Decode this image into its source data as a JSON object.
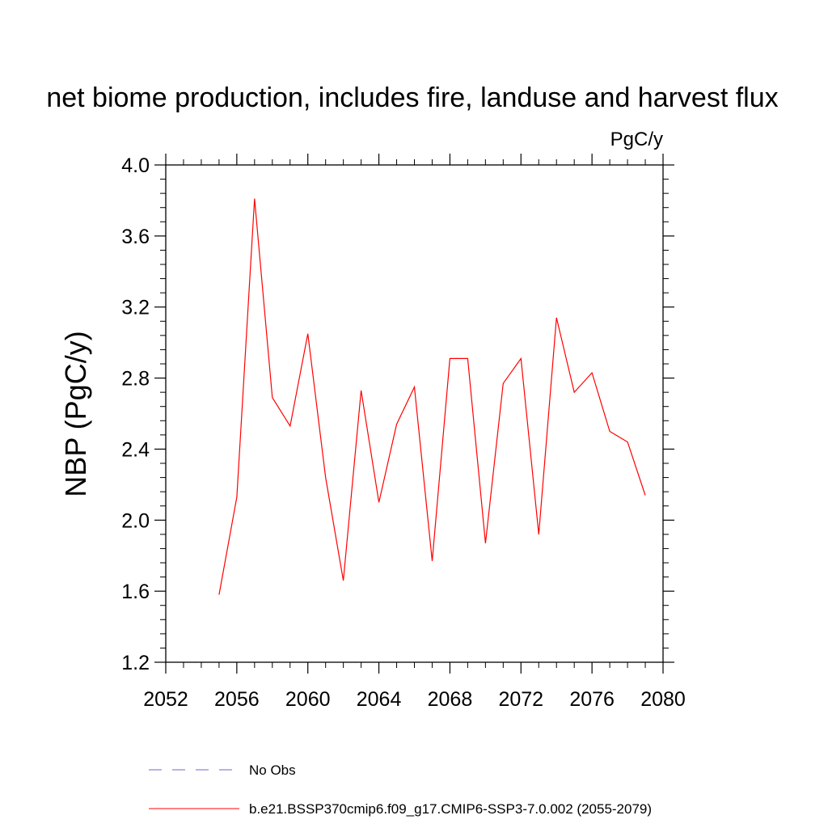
{
  "chart_data": {
    "type": "line",
    "title": "net biome production, includes fire, landuse and harvest flux",
    "units": "PgC/y",
    "xlabel": "",
    "ylabel": "NBP  (PgC/y)",
    "xlim": [
      2052,
      2080
    ],
    "ylim": [
      1.2,
      4.0
    ],
    "x_ticks": [
      2052,
      2056,
      2060,
      2064,
      2068,
      2072,
      2076,
      2080
    ],
    "x_tick_labels": [
      "2052",
      "2056",
      "2060",
      "2064",
      "2068",
      "2072",
      "2076",
      "2080"
    ],
    "y_ticks": [
      1.2,
      1.6,
      2.0,
      2.4,
      2.8,
      3.2,
      3.6,
      4.0
    ],
    "y_tick_labels": [
      "1.2",
      "1.6",
      "2.0",
      "2.4",
      "2.8",
      "3.2",
      "3.6",
      "4.0"
    ],
    "grid": false,
    "legend_position": "bottom",
    "series": [
      {
        "name": "b.e21.BSSP370cmip6.f09_g17.CMIP6-SSP3-7.0.002 (2055-2079)",
        "color": "#ff0000",
        "style": "solid",
        "x": [
          2055,
          2056,
          2057,
          2058,
          2059,
          2060,
          2061,
          2062,
          2063,
          2064,
          2065,
          2066,
          2067,
          2068,
          2069,
          2070,
          2071,
          2072,
          2073,
          2074,
          2075,
          2076,
          2077,
          2078,
          2079
        ],
        "y": [
          1.58,
          2.13,
          3.81,
          2.69,
          2.53,
          3.05,
          2.24,
          1.66,
          2.73,
          2.1,
          2.54,
          2.75,
          1.77,
          2.91,
          2.91,
          1.87,
          2.77,
          2.91,
          1.92,
          3.14,
          2.72,
          2.83,
          2.5,
          2.44,
          2.14
        ]
      }
    ],
    "legend": [
      {
        "label": "No Obs",
        "color": "#6a6acc",
        "style": "dashed"
      },
      {
        "label": "b.e21.BSSP370cmip6.f09_g17.CMIP6-SSP3-7.0.002 (2055-2079)",
        "color": "#ff0000",
        "style": "solid"
      }
    ]
  }
}
